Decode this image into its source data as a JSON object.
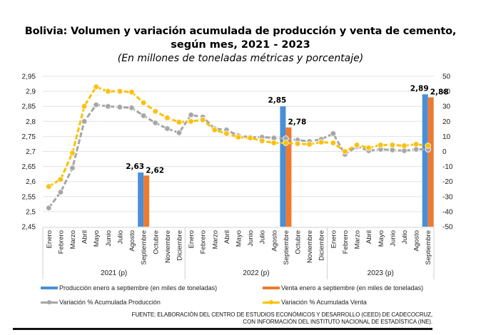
{
  "title": {
    "line1": "Bolivia: Volumen y variación acumulada de producción y venta de cemento,",
    "line2": "según mes, 2021 - 2023",
    "subtitle": "(En millones de toneladas métricas y porcentaje)"
  },
  "legend": {
    "items": [
      {
        "label": "Producción enero a septiembre (en miles de toneladas)",
        "color": "#4a8fd6",
        "kind": "bar"
      },
      {
        "label": "Venta enero a septiembre (en miles de toneladas)",
        "color": "#ee7a30",
        "kind": "bar"
      },
      {
        "label": "Variación % Acumulada Producción",
        "color": "#a6a6a6",
        "kind": "line"
      },
      {
        "label": "Variación % Acumulada Venta",
        "color": "#ffc000",
        "kind": "line"
      }
    ]
  },
  "source": {
    "line1": "FUENTE: ELABORACIÓN DEL CENTRO DE ESTUDIOS ECONÓMICOS Y DESARROLLO (CEED) DE CADECOCRUZ,",
    "line2": "CON INFORMACIÓN DEL INSTITUTO NACIONAL DE ESTADÍSTICA (INE)."
  },
  "chart_data": {
    "type": "bar+line",
    "title": "Bolivia: Volumen y variación acumulada de producción y venta de cemento, según mes, 2021 - 2023",
    "subtitle": "(En millones de toneladas métricas y porcentaje)",
    "year_groups": [
      {
        "label": "2021 (p)",
        "months": [
          "Enero",
          "Febrero",
          "Marzo",
          "Abril",
          "Mayo",
          "Junio",
          "Julio",
          "Agosto",
          "Septiembre",
          "Octubre",
          "Noviembre",
          "Diciembre"
        ]
      },
      {
        "label": "2022 (p)",
        "months": [
          "Enero",
          "Febrero",
          "Marzo",
          "Abril",
          "Mayo",
          "Junio",
          "Julio",
          "Agosto",
          "Septiembre",
          "Octubre",
          "Noviembre",
          "Diciembre"
        ]
      },
      {
        "label": "2023 (p)",
        "months": [
          "Enero",
          "Febrero",
          "Marzo",
          "Abril",
          "Mayo",
          "Junio",
          "Julio",
          "Agosto",
          "Septiembre"
        ]
      }
    ],
    "left_axis": {
      "min": 2.45,
      "max": 2.95,
      "step": 0.05,
      "ticks": [
        "2,45",
        "2,5",
        "2,55",
        "2,6",
        "2,65",
        "2,7",
        "2,75",
        "2,8",
        "2,85",
        "2,9",
        "2,95"
      ]
    },
    "right_axis": {
      "min": -50,
      "max": 50,
      "step": 10,
      "ticks": [
        "-50",
        "-40",
        "-30",
        "-20",
        "-10",
        "0",
        "10",
        "20",
        "30",
        "40",
        "50"
      ]
    },
    "grid": true,
    "legend_position": "bottom",
    "bars": [
      {
        "name": "Producción enero a septiembre (en miles de toneladas)",
        "axis": "left",
        "color": "#4a8fd6",
        "points": [
          {
            "index": 8,
            "value": 2.63,
            "label": "2,63"
          },
          {
            "index": 20,
            "value": 2.85,
            "label": "2,85"
          },
          {
            "index": 32,
            "value": 2.89,
            "label": "2,89"
          }
        ]
      },
      {
        "name": "Venta enero a septiembre (en miles de toneladas)",
        "axis": "left",
        "color": "#ee7a30",
        "points": [
          {
            "index": 8,
            "value": 2.62,
            "label": "2,62"
          },
          {
            "index": 20,
            "value": 2.78,
            "label": "2,78"
          },
          {
            "index": 32,
            "value": 2.88,
            "label": "2,88"
          }
        ]
      }
    ],
    "lines": [
      {
        "name": "Variación % Acumulada Producción",
        "axis": "right",
        "color": "#a6a6a6",
        "values": [
          -37.6,
          -27.1,
          -11,
          20,
          31,
          30,
          29.5,
          29,
          23.8,
          19,
          15.2,
          12.4,
          24.3,
          22.9,
          15.2,
          14.3,
          10.5,
          9.5,
          9.5,
          9,
          8.6,
          7.6,
          6.7,
          8.1,
          11.9,
          -1.9,
          3.3,
          0.5,
          1.4,
          1,
          0.5,
          1.4,
          1.4
        ]
      },
      {
        "name": "Variación % Acumulada Venta",
        "axis": "right",
        "color": "#ffc000",
        "values": [
          -23.3,
          -18.6,
          -1,
          30,
          43,
          40,
          40,
          39.5,
          32.4,
          26.7,
          22.4,
          19.5,
          20,
          21,
          14.3,
          11.9,
          9.5,
          9,
          7.1,
          5.7,
          5.7,
          5.2,
          4.8,
          6.2,
          5.7,
          0,
          4.3,
          2.4,
          4.3,
          4.3,
          3.8,
          4.8,
          3.8
        ]
      }
    ]
  }
}
